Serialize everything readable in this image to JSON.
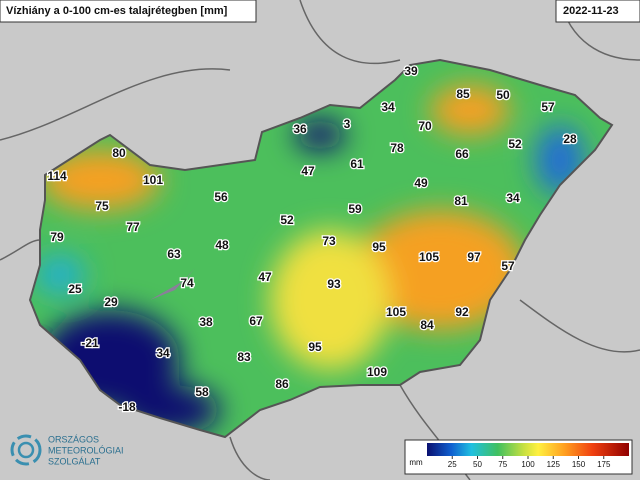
{
  "header": {
    "title": "Vízhiány a 0-100 cm-es talajrétegben [mm]",
    "date": "2022-11-23"
  },
  "labels": [
    "39",
    "85",
    "50",
    "57",
    "34",
    "36",
    "3",
    "70",
    "52",
    "28",
    "80",
    "78",
    "66",
    "61",
    "114",
    "101",
    "47",
    "49",
    "56",
    "81",
    "34",
    "75",
    "59",
    "77",
    "52",
    "79",
    "73",
    "95",
    "63",
    "48",
    "105",
    "97",
    "57",
    "74",
    "47",
    "93",
    "25",
    "29",
    "105",
    "84",
    "92",
    "38",
    "67",
    "-21",
    "34",
    "95",
    "83",
    "109",
    "86",
    "58",
    "-18"
  ],
  "legend": {
    "unit": "mm",
    "range": [
      0,
      200
    ],
    "ticks": [
      25,
      50,
      75,
      100,
      125,
      150,
      175
    ]
  },
  "logo": {
    "lines": [
      "ORSZÁGOS",
      "METEOROLÓGIAI",
      "SZOLGÁLAT"
    ]
  }
}
